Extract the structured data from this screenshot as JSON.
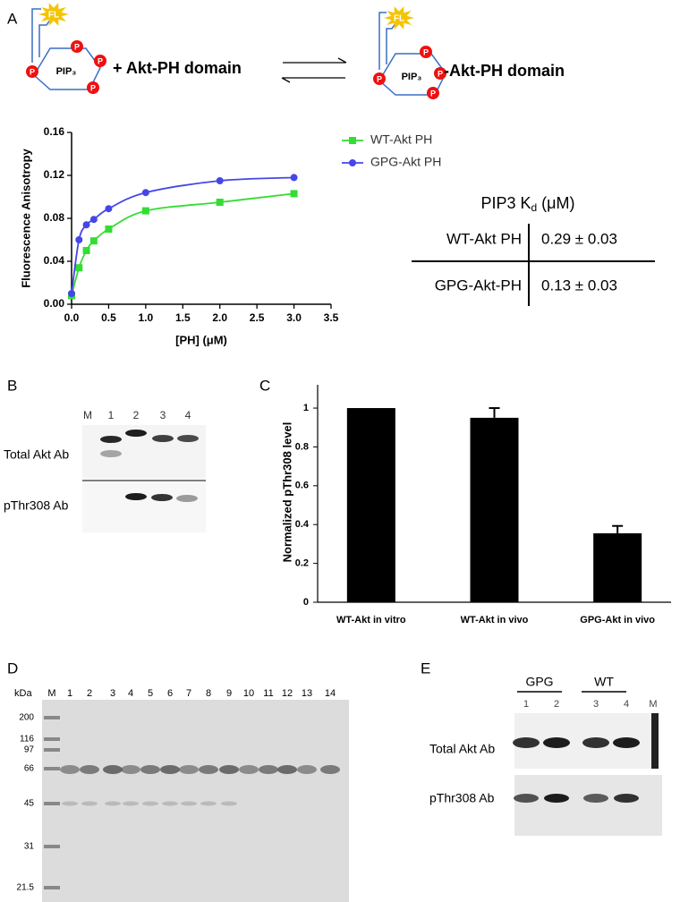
{
  "panel_labels": [
    "A",
    "B",
    "C",
    "D",
    "E"
  ],
  "scheme": {
    "fl": "FL",
    "pip": "PIP₃",
    "phospho": "P",
    "left_text": "+ Akt-PH domain",
    "right_text": "-Akt-PH domain"
  },
  "chart_data": [
    {
      "type": "line",
      "x_label": "[PH] (μM)",
      "y_label": "Fluorescence Anisotropy",
      "x": [
        0,
        0.1,
        0.2,
        0.3,
        0.5,
        1,
        2,
        3
      ],
      "series": [
        {
          "name": "WT-Akt PH",
          "color": "#33dd33",
          "marker": "square",
          "values": [
            0.008,
            0.034,
            0.05,
            0.059,
            0.07,
            0.087,
            0.095,
            0.103
          ]
        },
        {
          "name": "GPG-Akt PH",
          "color": "#4646e8",
          "marker": "circle",
          "values": [
            0.01,
            0.06,
            0.074,
            0.079,
            0.089,
            0.104,
            0.115,
            0.118
          ]
        }
      ],
      "xlim": [
        0,
        3.5
      ],
      "xticks": [
        {
          "value": 0,
          "label": "0.0"
        },
        0.5,
        {
          "value": 1,
          "label": "1.0"
        },
        1.5,
        {
          "value": 2,
          "label": "2.0"
        },
        2.5,
        {
          "value": 3,
          "label": "3.0"
        },
        3.5
      ],
      "ylim": [
        0,
        0.16
      ],
      "yticks": [
        {
          "value": 0,
          "label": "0.00"
        },
        0.04,
        0.08,
        0.12,
        0.16
      ]
    },
    {
      "type": "bar",
      "y_label": "Normalized pThr308 level",
      "categories": [
        "WT-Akt in vitro",
        "WT-Akt in vivo",
        "GPG-Akt in vivo"
      ],
      "values": [
        1,
        0.95,
        0.355
      ],
      "errors": [
        null,
        0.05,
        0.038
      ],
      "color": "#000000",
      "ylim": [
        0,
        1.12
      ],
      "yticks": [
        0,
        0.2,
        0.4,
        0.6,
        0.8,
        1
      ]
    }
  ],
  "kd_table": {
    "title": "PIP3 K",
    "title_sub": "d",
    "title_unit": " (μM)",
    "rows": [
      [
        "WT-Akt PH",
        "0.29 ± 0.03"
      ],
      [
        "GPG-Akt-PH",
        "0.13 ± 0.03"
      ]
    ]
  },
  "blot_b": {
    "lanes": [
      "M",
      "1",
      "2",
      "3",
      "4"
    ],
    "rows": [
      "Total Akt Ab",
      "pThr308 Ab"
    ]
  },
  "gel_d": {
    "unit": "kDa",
    "lanes": [
      "M",
      "1",
      "2",
      "3",
      "4",
      "5",
      "6",
      "7",
      "8",
      "9",
      "10",
      "11",
      "12",
      "13",
      "14"
    ],
    "markers": [
      "200",
      "116",
      "97",
      "66",
      "45",
      "31",
      "21.5"
    ]
  },
  "blot_e": {
    "groups": [
      "GPG",
      "WT"
    ],
    "lanes": [
      "1",
      "2",
      "3",
      "4",
      "M"
    ],
    "rows": [
      "Total Akt Ab",
      "pThr308 Ab"
    ]
  }
}
